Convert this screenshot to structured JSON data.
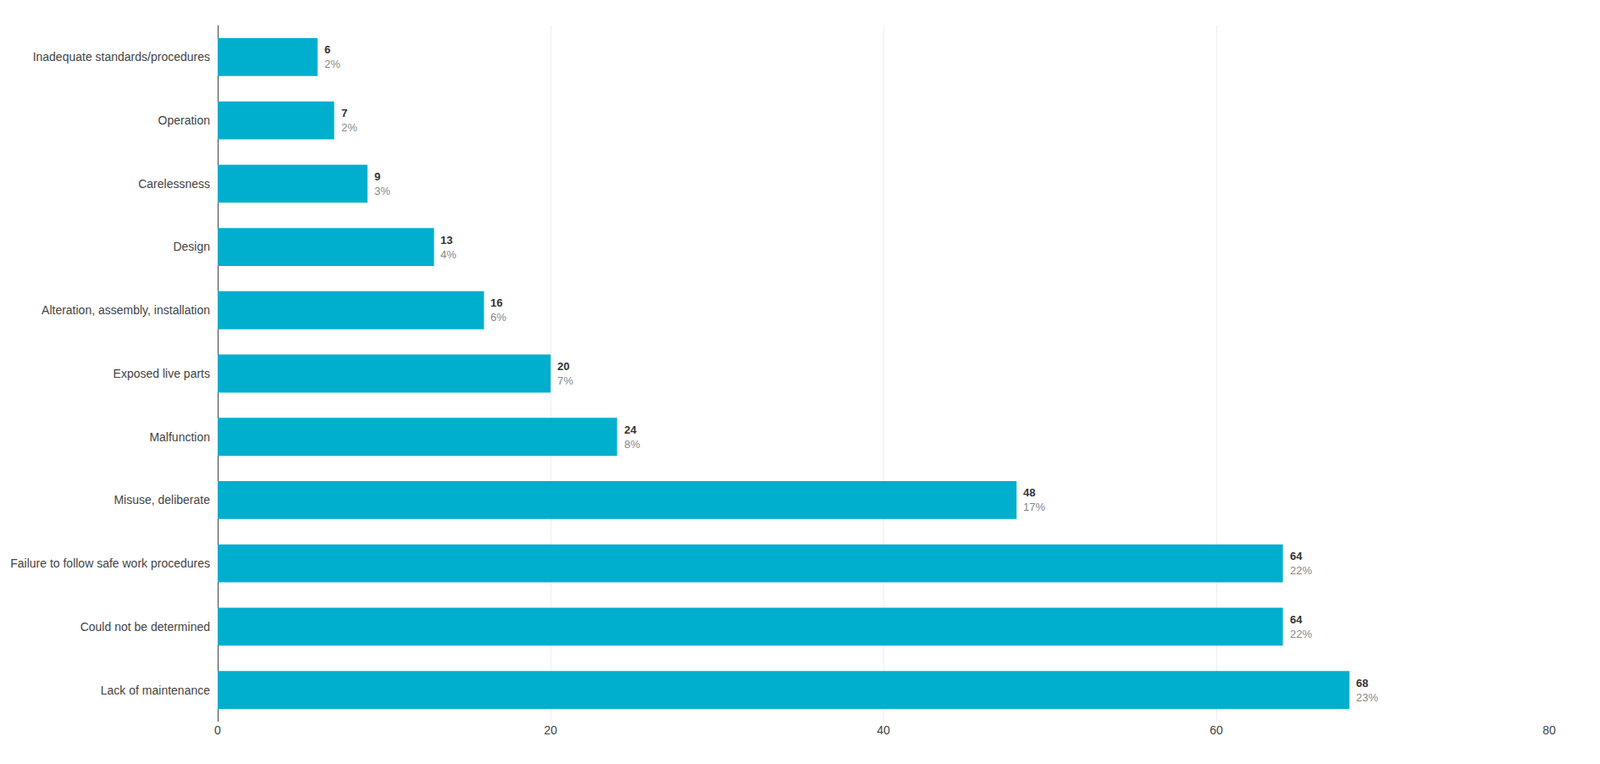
{
  "chart_data": {
    "type": "bar",
    "orientation": "horizontal",
    "categories": [
      "Lack of maintenance",
      "Could not be determined",
      "Failure to follow safe work procedures",
      "Misuse, deliberate",
      "Malfunction",
      "Exposed live parts",
      "Alteration, assembly, installation",
      "Design",
      "Carelessness",
      "Operation",
      "Inadequate standards/procedures"
    ],
    "values": [
      68,
      64,
      64,
      48,
      24,
      20,
      16,
      13,
      9,
      7,
      6
    ],
    "percentages": [
      "23%",
      "22%",
      "22%",
      "17%",
      "8%",
      "7%",
      "6%",
      "4%",
      "3%",
      "2%",
      "2%"
    ],
    "color": "#00AECD",
    "xlim": [
      0,
      80
    ],
    "xticks": [
      0,
      20,
      40,
      60,
      80
    ],
    "grid": true,
    "data_labels": true
  }
}
